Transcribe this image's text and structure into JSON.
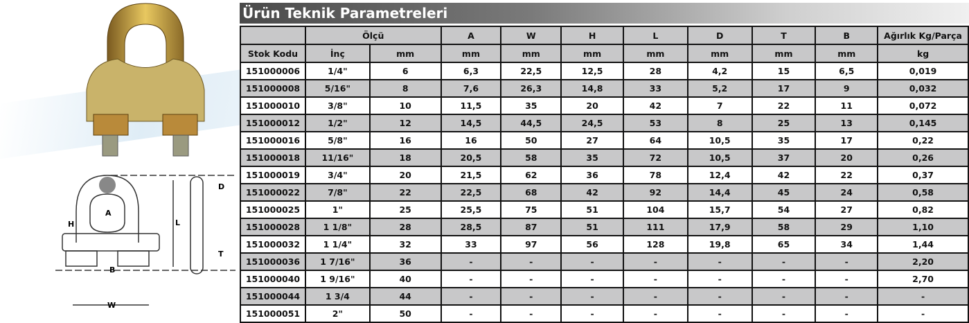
{
  "title": "Ürün Teknik Parametreleri",
  "header_row1": [
    "",
    "Ölçü",
    "A",
    "W",
    "H",
    "L",
    "D",
    "T",
    "B",
    "Ağırlık Kg/Parça"
  ],
  "header_row2": [
    "Stok Kodu",
    "İnç",
    "mm",
    "mm",
    "mm",
    "mm",
    "mm",
    "mm",
    "mm",
    "mm",
    "kg"
  ],
  "rows": [
    [
      "151000006",
      "1/4\"",
      "6",
      "6,3",
      "22,5",
      "12,5",
      "28",
      "4,2",
      "15",
      "6,5",
      "0,019"
    ],
    [
      "151000008",
      "5/16\"",
      "8",
      "7,6",
      "26,3",
      "14,8",
      "33",
      "5,2",
      "17",
      "9",
      "0,032"
    ],
    [
      "151000010",
      "3/8\"",
      "10",
      "11,5",
      "35",
      "20",
      "42",
      "7",
      "22",
      "11",
      "0,072"
    ],
    [
      "151000012",
      "1/2\"",
      "12",
      "14,5",
      "44,5",
      "24,5",
      "53",
      "8",
      "25",
      "13",
      "0,145"
    ],
    [
      "151000016",
      "5/8\"",
      "16",
      "16",
      "50",
      "27",
      "64",
      "10,5",
      "35",
      "17",
      "0,22"
    ],
    [
      "151000018",
      "11/16\"",
      "18",
      "20,5",
      "58",
      "35",
      "72",
      "10,5",
      "37",
      "20",
      "0,26"
    ],
    [
      "151000019",
      "3/4\"",
      "20",
      "21,5",
      "62",
      "36",
      "78",
      "12,4",
      "42",
      "22",
      "0,37"
    ],
    [
      "151000022",
      "7/8\"",
      "22",
      "22,5",
      "68",
      "42",
      "92",
      "14,4",
      "45",
      "24",
      "0,58"
    ],
    [
      "151000025",
      "1\"",
      "25",
      "25,5",
      "75",
      "51",
      "104",
      "15,7",
      "54",
      "27",
      "0,82"
    ],
    [
      "151000028",
      "1 1/8\"",
      "28",
      "28,5",
      "87",
      "51",
      "111",
      "17,9",
      "58",
      "29",
      "1,10"
    ],
    [
      "151000032",
      "1 1/4\"",
      "32",
      "33",
      "97",
      "56",
      "128",
      "19,8",
      "65",
      "34",
      "1,44"
    ],
    [
      "151000036",
      "1 7/16\"",
      "36",
      "-",
      "-",
      "-",
      "-",
      "-",
      "-",
      "-",
      "2,20"
    ],
    [
      "151000040",
      "1 9/16\"",
      "40",
      "-",
      "-",
      "-",
      "-",
      "-",
      "-",
      "-",
      "2,70"
    ],
    [
      "151000044",
      "1 3/4",
      "44",
      "-",
      "-",
      "-",
      "-",
      "-",
      "-",
      "-",
      "-"
    ],
    [
      "151000051",
      "2\"",
      "50",
      "-",
      "-",
      "-",
      "-",
      "-",
      "-",
      "-",
      "-"
    ]
  ],
  "diagram_labels": [
    "A",
    "H",
    "L",
    "D",
    "T",
    "B",
    "W"
  ]
}
